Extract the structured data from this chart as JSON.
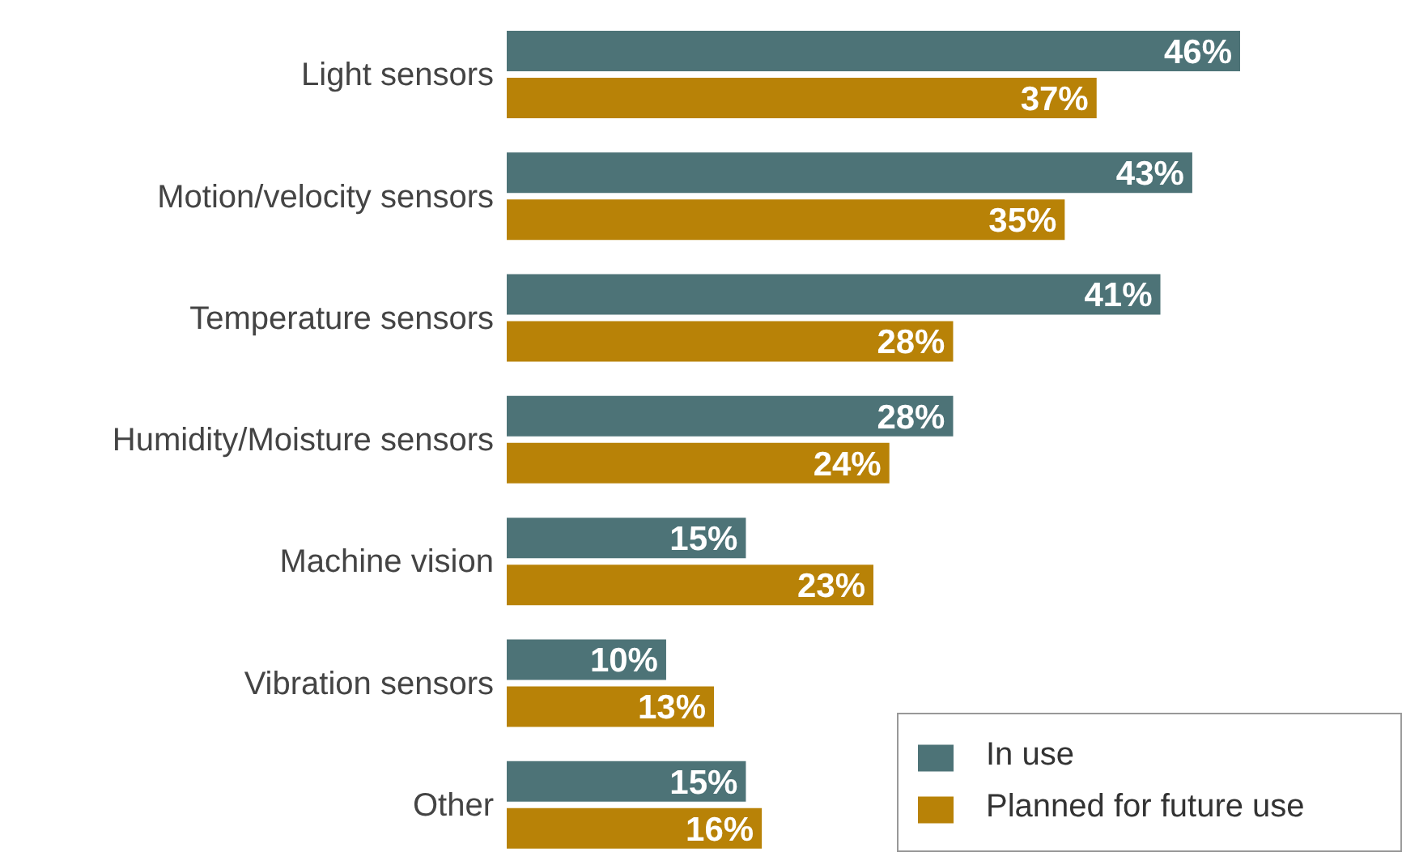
{
  "chart_data": {
    "type": "bar",
    "orientation": "horizontal",
    "categories": [
      "Light sensors",
      "Motion/velocity sensors",
      "Temperature sensors",
      "Humidity/Moisture sensors",
      "Machine vision",
      "Vibration sensors",
      "Other"
    ],
    "series": [
      {
        "name": "In use",
        "color": "#4d7377",
        "values": [
          46,
          43,
          41,
          28,
          15,
          10,
          15
        ],
        "value_labels": [
          "46%",
          "43%",
          "41%",
          "28%",
          "15%",
          "10%",
          "15%"
        ]
      },
      {
        "name": "Planned for future use",
        "color": "#b88207",
        "values": [
          37,
          35,
          28,
          24,
          23,
          13,
          16
        ],
        "value_labels": [
          "37%",
          "35%",
          "28%",
          "24%",
          "23%",
          "13%",
          "16%"
        ]
      }
    ],
    "tick_labels": "y",
    "legend": "bottom right"
  }
}
